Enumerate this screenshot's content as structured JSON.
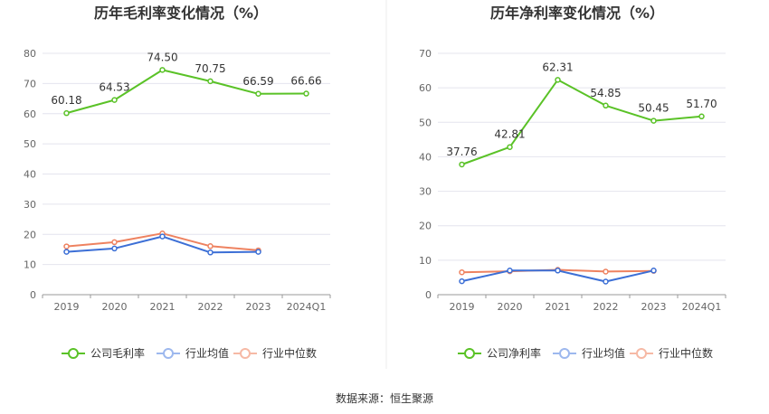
{
  "footer": {
    "source": "数据来源：恒生聚源"
  },
  "colors": {
    "company": "#5ac227",
    "industry_avg": "#3c6fd6",
    "industry_median": "#ee8260",
    "legend_avg": "#9db8ee",
    "legend_median": "#f6b9a5",
    "grid": "#e4e4ee",
    "axis": "#9a9a9a",
    "divider": "#eeeeee"
  },
  "chart_data": [
    {
      "type": "line",
      "title": "历年毛利率变化情况（%）",
      "categories": [
        "2019",
        "2020",
        "2021",
        "2022",
        "2023",
        "2024Q1"
      ],
      "ylim": [
        0,
        80
      ],
      "yticks": [
        "0",
        "10",
        "20",
        "30",
        "40",
        "50",
        "60",
        "70",
        "80"
      ],
      "grid": true,
      "legend_position": "bottom",
      "series": [
        {
          "name": "公司毛利率",
          "values": [
            60.18,
            64.53,
            74.5,
            70.75,
            66.59,
            66.66
          ],
          "labels": [
            "60.18",
            "64.53",
            "74.50",
            "70.75",
            "66.59",
            "66.66"
          ]
        },
        {
          "name": "行业均值",
          "values": [
            14.2,
            15.3,
            19.3,
            14.0,
            14.2,
            null
          ]
        },
        {
          "name": "行业中位数",
          "values": [
            16.0,
            17.4,
            20.3,
            16.1,
            14.7,
            null
          ]
        }
      ]
    },
    {
      "type": "line",
      "title": "历年净利率变化情况（%）",
      "categories": [
        "2019",
        "2020",
        "2021",
        "2022",
        "2023",
        "2024Q1"
      ],
      "ylim": [
        0,
        70
      ],
      "yticks": [
        "0",
        "10",
        "20",
        "30",
        "40",
        "50",
        "60",
        "70"
      ],
      "grid": true,
      "legend_position": "bottom",
      "series": [
        {
          "name": "公司净利率",
          "values": [
            37.76,
            42.81,
            62.31,
            54.85,
            50.45,
            51.7
          ],
          "labels": [
            "37.76",
            "42.81",
            "62.31",
            "54.85",
            "50.45",
            "51.70"
          ]
        },
        {
          "name": "行业均值",
          "values": [
            3.9,
            7.0,
            7.0,
            3.8,
            7.0,
            null
          ]
        },
        {
          "name": "行业中位数",
          "values": [
            6.5,
            6.8,
            7.2,
            6.7,
            6.9,
            null
          ]
        }
      ]
    }
  ]
}
